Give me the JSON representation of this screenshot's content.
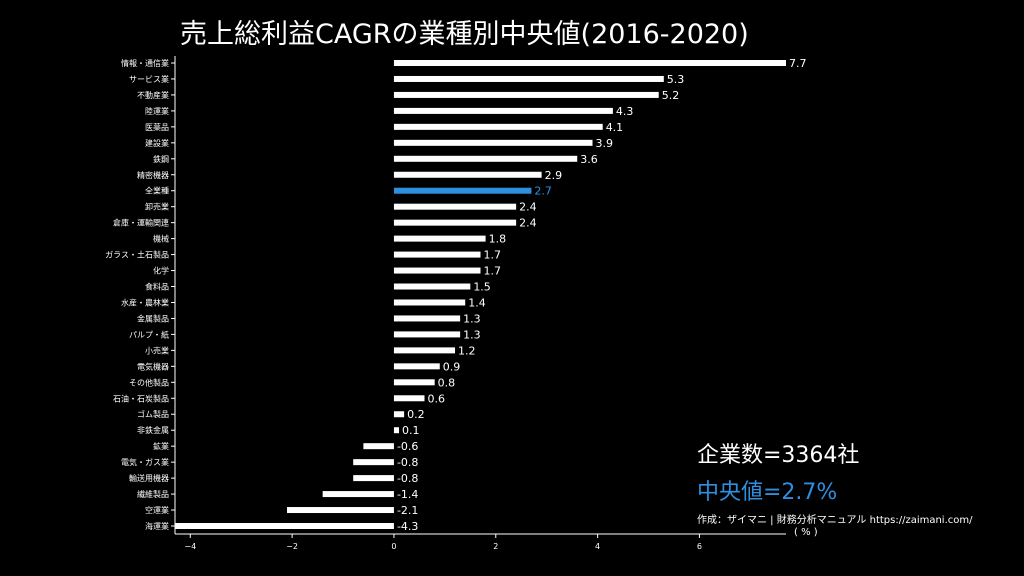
{
  "chart_data": {
    "type": "bar",
    "orientation": "horizontal",
    "title": "売上総利益CAGRの業種別中央値(2016-2020)",
    "xlabel": "( % )",
    "xlim": [
      -4.3,
      7.7
    ],
    "xticks": [
      -4,
      -2,
      0,
      2,
      4,
      6
    ],
    "xtick_labels": [
      "−4",
      "−2",
      "0",
      "2",
      "4",
      "6"
    ],
    "highlight_category": "全業種",
    "highlight_color": "#2e8fe0",
    "bar_color": "#ffffff",
    "grid": false,
    "categories": [
      "情報・通信業",
      "サービス業",
      "不動産業",
      "陸運業",
      "医薬品",
      "建設業",
      "鉄鋼",
      "精密機器",
      "全業種",
      "卸売業",
      "倉庫・運輸関連",
      "機械",
      "ガラス・土石製品",
      "化学",
      "食料品",
      "水産・農林業",
      "金属製品",
      "パルプ・紙",
      "小売業",
      "電気機器",
      "その他製品",
      "石油・石炭製品",
      "ゴム製品",
      "非鉄金属",
      "鉱業",
      "電気・ガス業",
      "輸送用機器",
      "繊維製品",
      "空運業",
      "海運業"
    ],
    "values": [
      7.7,
      5.3,
      5.2,
      4.3,
      4.1,
      3.9,
      3.6,
      2.9,
      2.7,
      2.4,
      2.4,
      1.8,
      1.7,
      1.7,
      1.5,
      1.4,
      1.3,
      1.3,
      1.2,
      0.9,
      0.8,
      0.6,
      0.2,
      0.1,
      -0.6,
      -0.8,
      -0.8,
      -1.4,
      -2.1,
      -4.3
    ],
    "value_labels": [
      "7.7",
      "5.3",
      "5.2",
      "4.3",
      "4.1",
      "3.9",
      "3.6",
      "2.9",
      "2.7",
      "2.4",
      "2.4",
      "1.8",
      "1.7",
      "1.7",
      "1.5",
      "1.4",
      "1.3",
      "1.3",
      "1.2",
      "0.9",
      "0.8",
      "0.6",
      "0.2",
      "0.1",
      "-0.6",
      "-0.8",
      "-0.8",
      "-1.4",
      "-2.1",
      "-4.3"
    ]
  },
  "annotations": {
    "company_count": "企業数=3364社",
    "median": "中央値=2.7%",
    "credit": "作成：ザイマニ | 財務分析マニュアル https://zaimani.com/"
  }
}
